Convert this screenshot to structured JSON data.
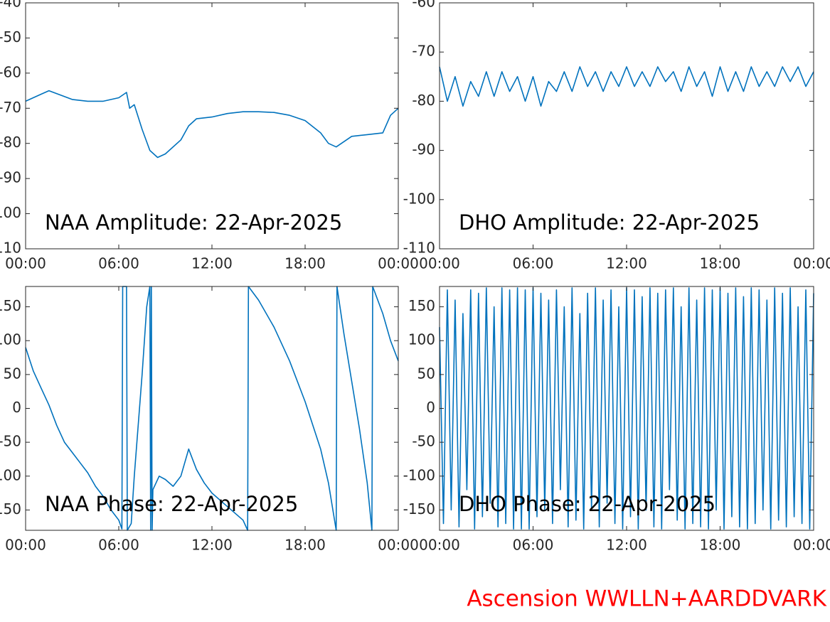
{
  "chart_data": [
    {
      "type": "line",
      "annotation": "NAA Amplitude: 22-Apr-2025",
      "xlim": [
        0,
        24
      ],
      "xticks": [
        {
          "value": 0,
          "label": "00:00"
        },
        {
          "value": 6,
          "label": "06:00"
        },
        {
          "value": 12,
          "label": "12:00"
        },
        {
          "value": 18,
          "label": "18:00"
        },
        {
          "value": 24,
          "label": "00:00"
        }
      ],
      "ylim": [
        -110,
        -40
      ],
      "yticks": [
        -110,
        -100,
        -90,
        -80,
        -70,
        -60,
        -50,
        -40
      ],
      "x": [
        0,
        1,
        1.5,
        3,
        4,
        5,
        6,
        6.5,
        6.7,
        7,
        7.5,
        8,
        8.5,
        9,
        10,
        10.5,
        11,
        12,
        13,
        14,
        15,
        16,
        17,
        18,
        19,
        19.5,
        20,
        21,
        22,
        23,
        23.5,
        24
      ],
      "series": [
        {
          "color": "#0072bd",
          "values": [
            -68,
            -66,
            -65,
            -67.5,
            -68,
            -68,
            -67,
            -65.5,
            -70,
            -69,
            -76,
            -82,
            -84,
            -83,
            -79,
            -75,
            -73,
            -72.5,
            -71.5,
            -71,
            -71,
            -71.2,
            -72,
            -73.5,
            -77,
            -80,
            -81,
            -78,
            -77.5,
            -77,
            -72,
            -70
          ]
        }
      ]
    },
    {
      "type": "line",
      "annotation": "DHO Amplitude: 22-Apr-2025",
      "xlim": [
        0,
        24
      ],
      "xticks": [
        {
          "value": 0,
          "label": "00:00"
        },
        {
          "value": 6,
          "label": "06:00"
        },
        {
          "value": 12,
          "label": "12:00"
        },
        {
          "value": 18,
          "label": "18:00"
        },
        {
          "value": 24,
          "label": "00:00"
        }
      ],
      "ylim": [
        -110,
        -60
      ],
      "yticks": [
        -110,
        -100,
        -90,
        -80,
        -70,
        -60
      ],
      "x": [
        0,
        0.5,
        1,
        1.5,
        2,
        2.5,
        3,
        3.5,
        4,
        4.5,
        5,
        5.5,
        6,
        6.5,
        7,
        7.5,
        8,
        8.5,
        9,
        9.5,
        10,
        10.5,
        11,
        11.5,
        12,
        12.5,
        13,
        13.5,
        14,
        14.5,
        15,
        15.5,
        16,
        16.5,
        17,
        17.5,
        18,
        18.5,
        19,
        19.5,
        20,
        20.5,
        21,
        21.5,
        22,
        22.5,
        23,
        23.5,
        24
      ],
      "series": [
        {
          "color": "#0072bd",
          "values": [
            -73,
            -80,
            -75,
            -81,
            -76,
            -79,
            -74,
            -79,
            -74,
            -78,
            -75,
            -80,
            -75,
            -81,
            -76,
            -78,
            -74,
            -78,
            -73,
            -77,
            -74,
            -78,
            -74,
            -77,
            -73,
            -77,
            -74,
            -77,
            -73,
            -76,
            -74,
            -78,
            -73,
            -77,
            -74,
            -79,
            -73,
            -78,
            -74,
            -78,
            -73,
            -77,
            -74,
            -77,
            -73,
            -76,
            -73,
            -77,
            -74
          ]
        }
      ]
    },
    {
      "type": "line",
      "annotation": "NAA Phase: 22-Apr-2025",
      "xlim": [
        0,
        24
      ],
      "xticks": [
        {
          "value": 0,
          "label": "00:00"
        },
        {
          "value": 6,
          "label": "06:00"
        },
        {
          "value": 12,
          "label": "12:00"
        },
        {
          "value": 18,
          "label": "18:00"
        },
        {
          "value": 24,
          "label": "00:00"
        }
      ],
      "ylim": [
        -180,
        180
      ],
      "yticks": [
        -150,
        -100,
        -50,
        0,
        50,
        100,
        150
      ],
      "x": [
        0,
        0.5,
        1,
        1.5,
        2,
        2.5,
        3,
        3.5,
        4,
        4.5,
        5,
        5.5,
        6,
        6.2,
        6.25,
        6.5,
        6.55,
        6.8,
        7,
        7.5,
        7.8,
        8,
        8.05,
        8.1,
        8.15,
        8.2,
        8.4,
        8.6,
        9,
        9.5,
        10,
        10.5,
        11,
        11.5,
        12,
        13,
        14,
        14.3,
        14.35,
        15,
        16,
        17,
        18,
        19,
        19.5,
        20,
        20.05,
        20.5,
        21,
        21.5,
        22,
        22.3,
        22.35,
        23,
        23.5,
        24
      ],
      "series": [
        {
          "color": "#0072bd",
          "values": [
            90,
            55,
            30,
            5,
            -25,
            -50,
            -65,
            -80,
            -95,
            -115,
            -130,
            -150,
            -165,
            -178,
            180,
            180,
            -180,
            -170,
            -100,
            50,
            150,
            180,
            -180,
            180,
            -180,
            -120,
            -110,
            -100,
            -105,
            -115,
            -100,
            -60,
            -90,
            -110,
            -125,
            -145,
            -165,
            -180,
            180,
            160,
            120,
            70,
            10,
            -60,
            -110,
            -180,
            180,
            110,
            40,
            -30,
            -110,
            -180,
            180,
            140,
            100,
            70
          ]
        }
      ]
    },
    {
      "type": "line",
      "annotation": "DHO Phase: 22-Apr-2025",
      "xlim": [
        0,
        24
      ],
      "xticks": [
        {
          "value": 0,
          "label": "00:00"
        },
        {
          "value": 6,
          "label": "06:00"
        },
        {
          "value": 12,
          "label": "12:00"
        },
        {
          "value": 18,
          "label": "18:00"
        },
        {
          "value": 24,
          "label": "00:00"
        }
      ],
      "ylim": [
        -180,
        180
      ],
      "yticks": [
        -150,
        -100,
        -50,
        0,
        50,
        100,
        150
      ],
      "x": [
        0,
        0.25,
        0.5,
        0.75,
        1,
        1.25,
        1.5,
        1.75,
        2,
        2.25,
        2.5,
        2.75,
        3,
        3.25,
        3.5,
        3.75,
        4,
        4.25,
        4.5,
        4.75,
        5,
        5.25,
        5.5,
        5.75,
        6,
        6.25,
        6.5,
        6.75,
        7,
        7.25,
        7.5,
        7.75,
        8,
        8.25,
        8.5,
        8.75,
        9,
        9.25,
        9.5,
        9.75,
        10,
        10.25,
        10.5,
        10.75,
        11,
        11.25,
        11.5,
        11.75,
        12,
        12.25,
        12.5,
        12.75,
        13,
        13.25,
        13.5,
        13.75,
        14,
        14.25,
        14.5,
        14.75,
        15,
        15.25,
        15.5,
        15.75,
        16,
        16.25,
        16.5,
        16.75,
        17,
        17.25,
        17.5,
        17.75,
        18,
        18.25,
        18.5,
        18.75,
        19,
        19.25,
        19.5,
        19.75,
        20,
        20.25,
        20.5,
        20.75,
        21,
        21.25,
        21.5,
        21.75,
        22,
        22.25,
        22.5,
        22.75,
        23,
        23.25,
        23.5,
        23.75,
        24
      ],
      "series": [
        {
          "color": "#0072bd",
          "values": [
            120,
            -170,
            175,
            -150,
            160,
            -175,
            140,
            -120,
            175,
            -178,
            170,
            -160,
            178,
            -140,
            150,
            -175,
            178,
            -170,
            175,
            -178,
            178,
            -178,
            175,
            -178,
            178,
            -160,
            170,
            -150,
            160,
            -170,
            175,
            -120,
            150,
            -175,
            178,
            -165,
            140,
            -178,
            170,
            -150,
            178,
            -175,
            160,
            -140,
            175,
            -170,
            150,
            -178,
            178,
            -160,
            175,
            -178,
            165,
            -150,
            178,
            -175,
            170,
            -178,
            175,
            -120,
            178,
            -165,
            150,
            -178,
            178,
            -170,
            160,
            -175,
            178,
            -178,
            175,
            -150,
            178,
            -178,
            170,
            -160,
            178,
            -175,
            165,
            -178,
            178,
            -170,
            175,
            -150,
            160,
            -178,
            178,
            -165,
            170,
            -175,
            178,
            -160,
            150,
            -170,
            175,
            -178,
            170
          ]
        }
      ]
    }
  ],
  "caption": "Ascension WWLLN+AARDDVARK"
}
